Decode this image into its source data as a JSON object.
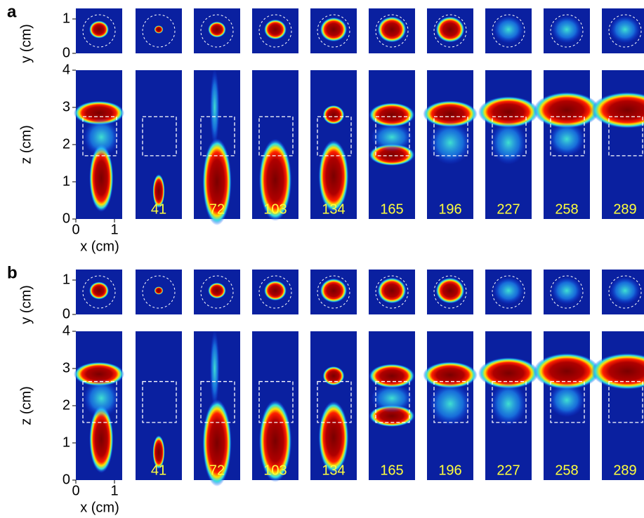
{
  "panels": [
    {
      "label": "a",
      "y_axis": {
        "label": "y (cm)",
        "ticks": [
          0,
          1
        ]
      },
      "z_axis": {
        "label": "z (cm)",
        "ticks": [
          0,
          1,
          2,
          3,
          4
        ]
      },
      "x_axis": {
        "label": "x (cm)",
        "ticks": [
          0,
          1
        ]
      },
      "frames": [
        "41",
        "72",
        "103",
        "134",
        "165",
        "196",
        "227",
        "258",
        "289"
      ]
    },
    {
      "label": "b",
      "y_axis": {
        "label": "y (cm)",
        "ticks": [
          0,
          1
        ]
      },
      "z_axis": {
        "label": "z (cm)",
        "ticks": [
          0,
          1,
          2,
          3,
          4
        ]
      },
      "x_axis": {
        "label": "x (cm)",
        "ticks": [
          0,
          1
        ]
      },
      "frames": [
        "41",
        "72",
        "103",
        "134",
        "165",
        "196",
        "227",
        "258",
        "289"
      ]
    }
  ]
}
